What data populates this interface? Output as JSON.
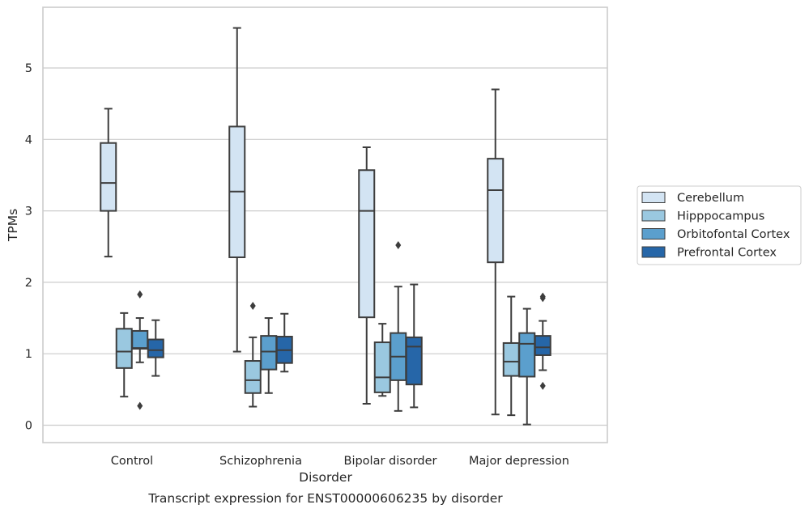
{
  "chart_data": {
    "type": "box",
    "title": "Transcript expression for ENST00000606235 by disorder",
    "xlabel": "Disorder",
    "ylabel": "TPMs",
    "ylim": [
      -0.25,
      5.85
    ],
    "yticks": [
      0,
      1,
      2,
      3,
      4,
      5
    ],
    "grid": "horizontal",
    "legend_position": "right",
    "categories": [
      "Control",
      "Schizophrenia",
      "Bipolar disorder",
      "Major depression"
    ],
    "series": [
      {
        "name": "Cerebellum",
        "color": "#d3e4f3",
        "boxes": [
          {
            "whisker_low": 2.36,
            "q1": 3.0,
            "median": 3.39,
            "q3": 3.95,
            "whisker_high": 4.43,
            "outliers": []
          },
          {
            "whisker_low": 1.03,
            "q1": 2.35,
            "median": 3.27,
            "q3": 4.18,
            "whisker_high": 5.56,
            "outliers": []
          },
          {
            "whisker_low": 0.3,
            "q1": 1.51,
            "median": 3.0,
            "q3": 3.57,
            "whisker_high": 3.89,
            "outliers": []
          },
          {
            "whisker_low": 0.15,
            "q1": 2.28,
            "median": 3.29,
            "q3": 3.73,
            "whisker_high": 4.7,
            "outliers": []
          }
        ]
      },
      {
        "name": "Hipppocampus",
        "color": "#9ac8e0",
        "boxes": [
          {
            "whisker_low": 0.4,
            "q1": 0.8,
            "median": 1.03,
            "q3": 1.35,
            "whisker_high": 1.57,
            "outliers": []
          },
          {
            "whisker_low": 0.26,
            "q1": 0.45,
            "median": 0.63,
            "q3": 0.9,
            "whisker_high": 1.23,
            "outliers": [
              1.67
            ]
          },
          {
            "whisker_low": 0.41,
            "q1": 0.46,
            "median": 0.67,
            "q3": 1.16,
            "whisker_high": 1.42,
            "outliers": []
          },
          {
            "whisker_low": 0.14,
            "q1": 0.69,
            "median": 0.89,
            "q3": 1.15,
            "whisker_high": 1.8,
            "outliers": []
          }
        ]
      },
      {
        "name": "Orbitofontal Cortex",
        "color": "#5b9fcd",
        "boxes": [
          {
            "whisker_low": 0.88,
            "q1": 1.07,
            "median": 1.08,
            "q3": 1.32,
            "whisker_high": 1.5,
            "outliers": [
              1.83,
              0.27
            ]
          },
          {
            "whisker_low": 0.45,
            "q1": 0.78,
            "median": 1.03,
            "q3": 1.25,
            "whisker_high": 1.5,
            "outliers": []
          },
          {
            "whisker_low": 0.2,
            "q1": 0.63,
            "median": 0.96,
            "q3": 1.29,
            "whisker_high": 1.94,
            "outliers": [
              2.52
            ]
          },
          {
            "whisker_low": 0.01,
            "q1": 0.68,
            "median": 1.14,
            "q3": 1.29,
            "whisker_high": 1.63,
            "outliers": []
          }
        ]
      },
      {
        "name": "Prefrontal Cortex",
        "color": "#2666a8",
        "boxes": [
          {
            "whisker_low": 0.69,
            "q1": 0.95,
            "median": 1.05,
            "q3": 1.2,
            "whisker_high": 1.47,
            "outliers": []
          },
          {
            "whisker_low": 0.75,
            "q1": 0.87,
            "median": 1.05,
            "q3": 1.24,
            "whisker_high": 1.56,
            "outliers": []
          },
          {
            "whisker_low": 0.25,
            "q1": 0.57,
            "median": 1.1,
            "q3": 1.23,
            "whisker_high": 1.97,
            "outliers": []
          },
          {
            "whisker_low": 0.77,
            "q1": 0.98,
            "median": 1.09,
            "q3": 1.25,
            "whisker_high": 1.46,
            "outliers": [
              1.8,
              1.78,
              0.55
            ]
          }
        ]
      }
    ]
  }
}
